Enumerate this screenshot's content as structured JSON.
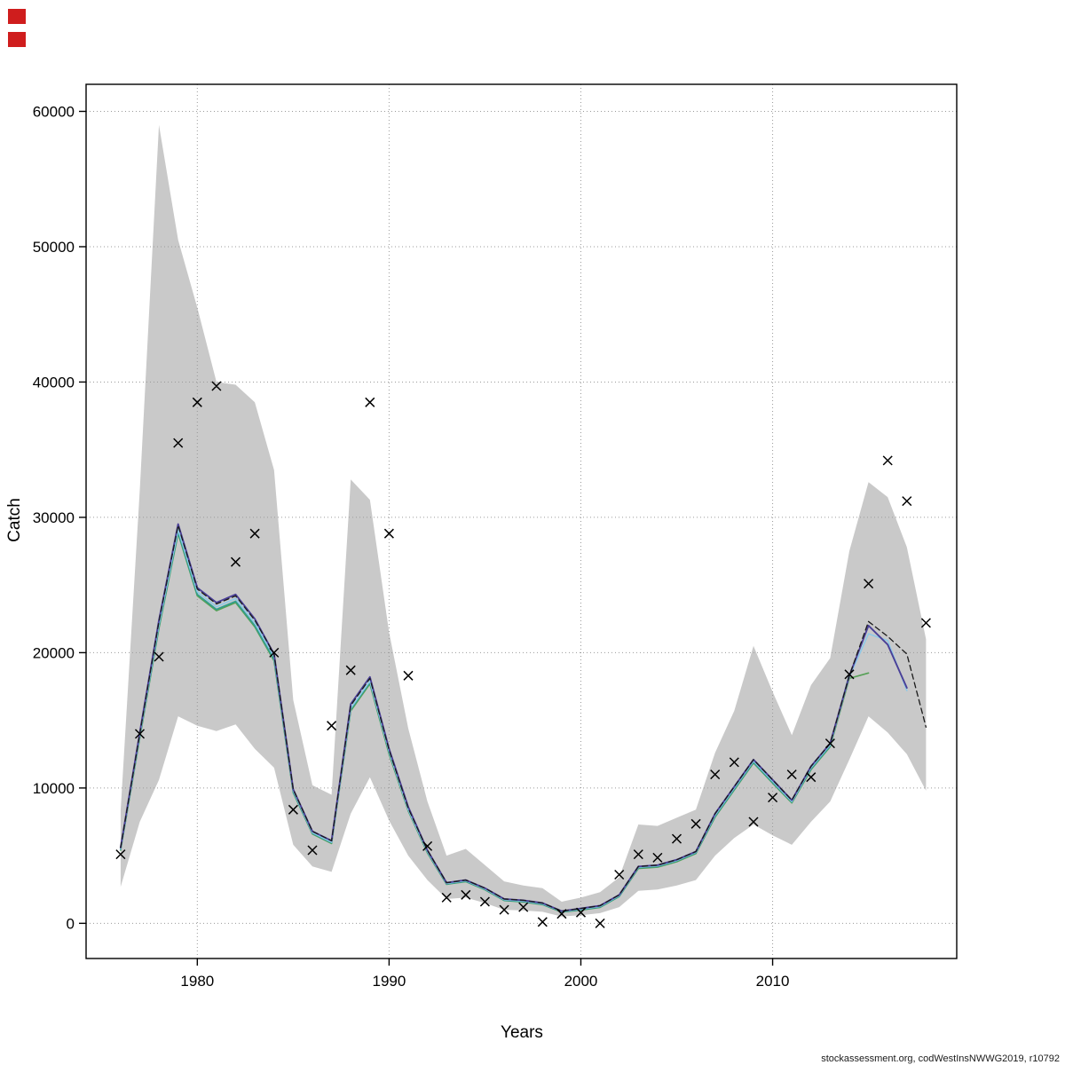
{
  "figure": {
    "xlabel": "Years",
    "ylabel": "Catch",
    "footer": "stockassessment.org, codWestInsNWWG2019, r10792"
  },
  "artifacts": {
    "badge_color": "#cf1d1d"
  },
  "chart_data": {
    "type": "line",
    "title": "",
    "xlabel": "Years",
    "ylabel": "Catch",
    "xlim": [
      1974.2,
      2019.6
    ],
    "ylim": [
      -2600,
      62000
    ],
    "x_ticks": [
      1980,
      1990,
      2000,
      2010
    ],
    "y_ticks": [
      0,
      10000,
      20000,
      30000,
      40000,
      50000,
      60000
    ],
    "grid": true,
    "grid_color": "#9a9a9a",
    "years": [
      1976,
      1977,
      1978,
      1979,
      1980,
      1981,
      1982,
      1983,
      1984,
      1985,
      1986,
      1987,
      1988,
      1989,
      1990,
      1991,
      1992,
      1993,
      1994,
      1995,
      1996,
      1997,
      1998,
      1999,
      2000,
      2001,
      2002,
      2003,
      2004,
      2005,
      2006,
      2007,
      2008,
      2009,
      2010,
      2011,
      2012,
      2013,
      2014,
      2015,
      2016,
      2017,
      2018
    ],
    "band": {
      "name": "confidence-band",
      "color": "#c9c9c9",
      "lower": [
        2700,
        7500,
        10600,
        15300,
        14600,
        14200,
        14700,
        12900,
        11500,
        5800,
        4200,
        3800,
        8100,
        10800,
        7600,
        5000,
        3200,
        1800,
        1900,
        1500,
        1000,
        950,
        850,
        500,
        600,
        750,
        1200,
        2400,
        2500,
        2800,
        3200,
        5000,
        6300,
        7300,
        6500,
        5800,
        7500,
        9000,
        12100,
        15300,
        14100,
        12500,
        9800
      ],
      "upper": [
        8300,
        32000,
        59000,
        50500,
        45500,
        40000,
        39800,
        38500,
        33500,
        16500,
        10200,
        9500,
        32800,
        31300,
        21500,
        14400,
        9000,
        5000,
        5500,
        4300,
        3100,
        2800,
        2600,
        1600,
        1900,
        2300,
        3400,
        7300,
        7200,
        7800,
        8400,
        12600,
        15700,
        20500,
        17100,
        13900,
        17600,
        19600,
        27500,
        32600,
        31500,
        27800,
        21000
      ]
    },
    "series": [
      {
        "name": "fit-green",
        "color": "#55a055",
        "width": 1.6,
        "dash": null,
        "values": [
          5400,
          13700,
          21800,
          28800,
          24200,
          23100,
          23700,
          21900,
          19400,
          9650,
          6600,
          5900,
          15700,
          17700,
          12500,
          8300,
          5200,
          2880,
          3080,
          2480,
          1680,
          1580,
          1380,
          830,
          980,
          1180,
          1980,
          4050,
          4150,
          4550,
          5150,
          7850,
          9850,
          11850,
          10350,
          8900,
          11350,
          13050,
          18100,
          18500,
          null,
          null,
          null
        ]
      },
      {
        "name": "fit-teal",
        "color": "#2f9e8f",
        "width": 1.6,
        "dash": null,
        "values": [
          5450,
          13800,
          21900,
          28900,
          24300,
          23200,
          23800,
          22000,
          19500,
          9700,
          6650,
          5950,
          15800,
          17800,
          12600,
          8350,
          5250,
          2900,
          3100,
          2500,
          1700,
          1600,
          1400,
          850,
          1000,
          1200,
          2000,
          4100,
          4200,
          4600,
          5200,
          7900,
          9900,
          11900,
          10400,
          8950,
          11400,
          13100,
          18400,
          null,
          null,
          null,
          null
        ]
      },
      {
        "name": "fit-cyan",
        "color": "#8ec9e8",
        "width": 1.6,
        "dash": null,
        "values": [
          5500,
          13900,
          22100,
          29100,
          24500,
          23400,
          24000,
          22200,
          19700,
          9800,
          6700,
          6000,
          15900,
          17900,
          12700,
          8400,
          5300,
          2950,
          3150,
          2550,
          1750,
          1650,
          1450,
          880,
          1050,
          1250,
          2050,
          4150,
          4250,
          4650,
          5250,
          8000,
          10000,
          12000,
          10500,
          9000,
          11500,
          13200,
          18200,
          21400,
          20900,
          17200,
          null
        ]
      },
      {
        "name": "fit-purple",
        "color": "#4a3f97",
        "width": 1.9,
        "dash": null,
        "values": [
          5600,
          14100,
          22400,
          29500,
          24800,
          23700,
          24300,
          22500,
          19900,
          9900,
          6800,
          6100,
          16200,
          18200,
          12900,
          8600,
          5400,
          3000,
          3200,
          2600,
          1800,
          1700,
          1500,
          900,
          1100,
          1300,
          2100,
          4200,
          4300,
          4700,
          5300,
          8100,
          10100,
          12100,
          10600,
          9100,
          11600,
          13300,
          18300,
          22000,
          20600,
          17400,
          null
        ]
      },
      {
        "name": "fit-mean-dashed",
        "color": "#1a1a1a",
        "width": 1.3,
        "dash": "6,4",
        "values": [
          5600,
          14000,
          22300,
          29400,
          24700,
          23600,
          24200,
          22400,
          19900,
          9900,
          6800,
          6100,
          16100,
          18100,
          12800,
          8500,
          5400,
          3000,
          3200,
          2600,
          1800,
          1700,
          1500,
          900,
          1100,
          1300,
          2100,
          4200,
          4300,
          4700,
          5300,
          8100,
          10100,
          12100,
          10600,
          9100,
          11600,
          13300,
          18300,
          22300,
          21200,
          19900,
          14500
        ]
      }
    ],
    "points": {
      "name": "observed-catch",
      "marker": "x",
      "color": "#000000",
      "values": [
        5100,
        14000,
        19700,
        35500,
        38500,
        39700,
        26700,
        28800,
        20000,
        8400,
        5400,
        14600,
        18700,
        38500,
        28800,
        18300,
        5700,
        1900,
        2100,
        1600,
        1000,
        1200,
        100,
        700,
        800,
        0,
        3600,
        5100,
        4850,
        6250,
        7350,
        11000,
        11900,
        7500,
        9300,
        11000,
        10800,
        13300,
        18400,
        25100,
        34200,
        31200,
        22200
      ]
    }
  }
}
